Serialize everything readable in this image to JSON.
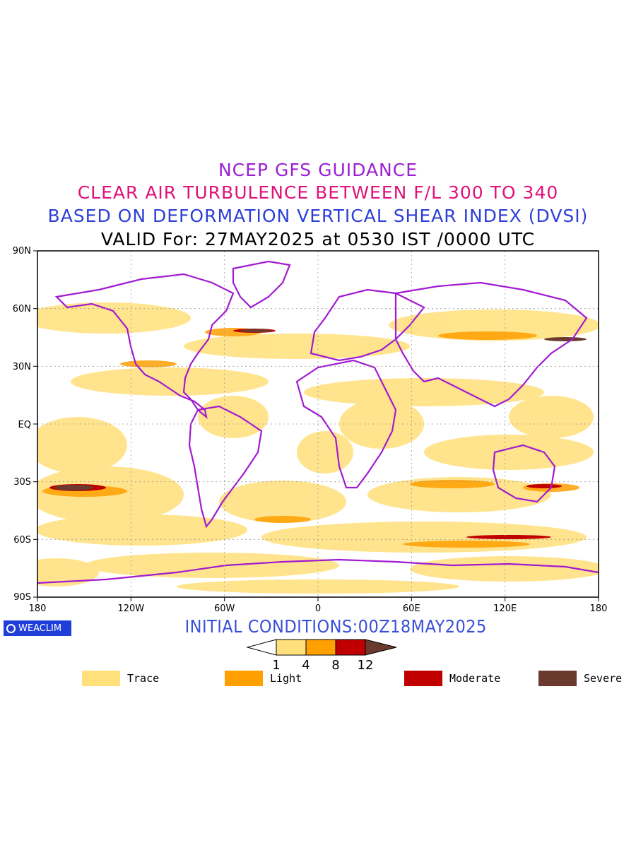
{
  "titles": {
    "line1": "NCEP GFS GUIDANCE",
    "line2": "CLEAR AIR TURBULENCE BETWEEN F/L 300 TO 340",
    "line3": "BASED ON DEFORMATION VERTICAL SHEAR INDEX (DVSI)",
    "line4": "VALID For: 27MAY2025 at 0530 IST /0000 UTC"
  },
  "colors": {
    "title1": "#9b1fd3",
    "title2": "#e0127a",
    "title3": "#2d3fd6",
    "title4": "#000000",
    "init": "#3a50d8",
    "coast": "#a21ad0",
    "trace": "#ffe07a",
    "light": "#ff9f00",
    "moderate": "#c00000",
    "severe": "#6b3a2e"
  },
  "map": {
    "lat_labels": [
      "90N",
      "60N",
      "30N",
      "EQ",
      "30S",
      "60S",
      "90S"
    ],
    "lon_labels": [
      "180",
      "120W",
      "60W",
      "0",
      "60E",
      "120E",
      "180"
    ]
  },
  "logo": {
    "text": "WEACLIM"
  },
  "initial_conditions": "INITIAL CONDITIONS:00Z18MAY2025",
  "colorbar": {
    "ticks": [
      "1",
      "4",
      "8",
      "12"
    ]
  },
  "legend": [
    {
      "label": "Trace",
      "color": "#ffe07a"
    },
    {
      "label": "Light",
      "color": "#ff9f00"
    },
    {
      "label": "Moderate",
      "color": "#c00000"
    },
    {
      "label": "Severe",
      "color": "#6b3a2e"
    }
  ]
}
